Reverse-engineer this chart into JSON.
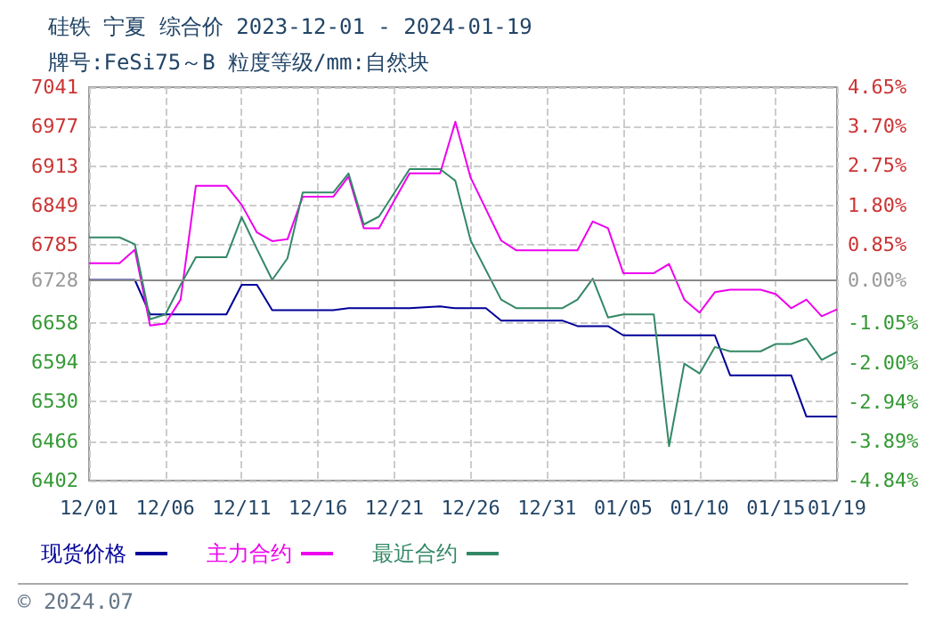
{
  "chart_data": {
    "type": "line",
    "title": "硅铁 宁夏 综合价 2023-12-01 - 2024-01-19",
    "subtitle": "牌号:FeSi75～B 粒度等级/mm:自然块",
    "annotations": [
      "© 2024.07"
    ],
    "xlim": [
      "2023-12-01",
      "2024-01-19"
    ],
    "xticks": [
      {
        "value": "2023-12-01",
        "label": "12/01"
      },
      {
        "value": "2023-12-06",
        "label": "12/06"
      },
      {
        "value": "2023-12-11",
        "label": "12/11"
      },
      {
        "value": "2023-12-16",
        "label": "12/16"
      },
      {
        "value": "2023-12-21",
        "label": "12/21"
      },
      {
        "value": "2023-12-26",
        "label": "12/26"
      },
      {
        "value": "2023-12-31",
        "label": "12/31"
      },
      {
        "value": "2024-01-05",
        "label": "01/05"
      },
      {
        "value": "2024-01-10",
        "label": "01/10"
      },
      {
        "value": "2024-01-15",
        "label": "01/15"
      },
      {
        "value": "2024-01-19",
        "label": "01/19"
      }
    ],
    "ylim": [
      6402,
      7041
    ],
    "yticks": [
      6402,
      6466,
      6530,
      6594,
      6658,
      6728,
      6785,
      6849,
      6913,
      6977,
      7041
    ],
    "y2lim": [
      -4.84,
      4.65
    ],
    "y2ticks": [
      {
        "value": -4.84,
        "label": "-4.84%"
      },
      {
        "value": -3.89,
        "label": "-3.89%"
      },
      {
        "value": -2.94,
        "label": "-2.94%"
      },
      {
        "value": -2.0,
        "label": "-2.00%"
      },
      {
        "value": -1.05,
        "label": "-1.05%"
      },
      {
        "value": 0,
        "label": "0.00%"
      },
      {
        "value": 0.85,
        "label": "0.85%"
      },
      {
        "value": 1.8,
        "label": "1.80%"
      },
      {
        "value": 2.75,
        "label": "2.75%"
      },
      {
        "value": 3.7,
        "label": "3.70%"
      },
      {
        "value": 4.65,
        "label": "4.65%"
      }
    ],
    "ref_lines": [
      {
        "axis": "y2",
        "value": 0,
        "color": "#888888",
        "line_style": "solid"
      }
    ],
    "grid": true,
    "legend": "bottom left",
    "marker": "none",
    "line_style": "solid",
    "series": [
      {
        "name": "现货价格",
        "color": "#000099",
        "x": [
          "2023-12-01",
          "2023-12-04",
          "2023-12-05",
          "2023-12-10",
          "2023-12-11",
          "2023-12-12",
          "2023-12-13",
          "2023-12-17",
          "2023-12-18",
          "2023-12-22",
          "2023-12-24",
          "2023-12-25",
          "2023-12-27",
          "2023-12-28",
          "2024-01-01",
          "2024-01-02",
          "2024-01-04",
          "2024-01-05",
          "2024-01-11",
          "2024-01-12",
          "2024-01-16",
          "2024-01-17",
          "2024-01-19"
        ],
        "values": [
          6728,
          6728,
          6672,
          6672,
          6720,
          6720,
          6679,
          6679,
          6682,
          6682,
          6685,
          6682,
          6682,
          6662,
          6662,
          6653,
          6653,
          6638,
          6638,
          6573,
          6573,
          6506,
          6506
        ]
      },
      {
        "name": "主力合约",
        "color": "#ee00ee",
        "x": [
          "2023-12-01",
          "2023-12-03",
          "2023-12-04",
          "2023-12-05",
          "2023-12-06",
          "2023-12-07",
          "2023-12-08",
          "2023-12-10",
          "2023-12-11",
          "2023-12-12",
          "2023-12-13",
          "2023-12-14",
          "2023-12-15",
          "2023-12-17",
          "2023-12-18",
          "2023-12-19",
          "2023-12-20",
          "2023-12-21",
          "2023-12-22",
          "2023-12-24",
          "2023-12-25",
          "2023-12-26",
          "2023-12-28",
          "2023-12-29",
          "2024-01-02",
          "2024-01-03",
          "2024-01-04",
          "2024-01-05",
          "2024-01-07",
          "2024-01-08",
          "2024-01-09",
          "2024-01-10",
          "2024-01-11",
          "2024-01-12",
          "2024-01-14",
          "2024-01-15",
          "2024-01-16",
          "2024-01-17",
          "2024-01-18",
          "2024-01-19"
        ],
        "values": [
          6755,
          6755,
          6777,
          6654,
          6657,
          6696,
          6881,
          6881,
          6850,
          6805,
          6791,
          6794,
          6863,
          6863,
          6896,
          6812,
          6812,
          6857,
          6901,
          6901,
          6985,
          6894,
          6792,
          6776,
          6776,
          6823,
          6812,
          6739,
          6739,
          6754,
          6696,
          6675,
          6708,
          6712,
          6712,
          6705,
          6682,
          6696,
          6669,
          6680
        ]
      },
      {
        "name": "最近合约",
        "color": "#338866",
        "x": [
          "2023-12-01",
          "2023-12-03",
          "2023-12-04",
          "2023-12-05",
          "2023-12-06",
          "2023-12-07",
          "2023-12-08",
          "2023-12-10",
          "2023-12-11",
          "2023-12-12",
          "2023-12-13",
          "2023-12-14",
          "2023-12-15",
          "2023-12-17",
          "2023-12-18",
          "2023-12-19",
          "2023-12-20",
          "2023-12-22",
          "2023-12-24",
          "2023-12-25",
          "2023-12-26",
          "2023-12-28",
          "2023-12-29",
          "2024-01-01",
          "2024-01-02",
          "2024-01-03",
          "2024-01-04",
          "2024-01-05",
          "2024-01-07",
          "2024-01-08",
          "2024-01-09",
          "2024-01-10",
          "2024-01-11",
          "2024-01-12",
          "2024-01-14",
          "2024-01-15",
          "2024-01-16",
          "2024-01-17",
          "2024-01-18",
          "2024-01-19"
        ],
        "values": [
          6797,
          6797,
          6786,
          6664,
          6672,
          6720,
          6765,
          6765,
          6830,
          6778,
          6728,
          6763,
          6870,
          6870,
          6901,
          6818,
          6831,
          6908,
          6908,
          6889,
          6792,
          6696,
          6682,
          6682,
          6696,
          6730,
          6667,
          6672,
          6672,
          6458,
          6592,
          6576,
          6619,
          6612,
          6612,
          6624,
          6624,
          6633,
          6598,
          6611
        ]
      }
    ]
  }
}
